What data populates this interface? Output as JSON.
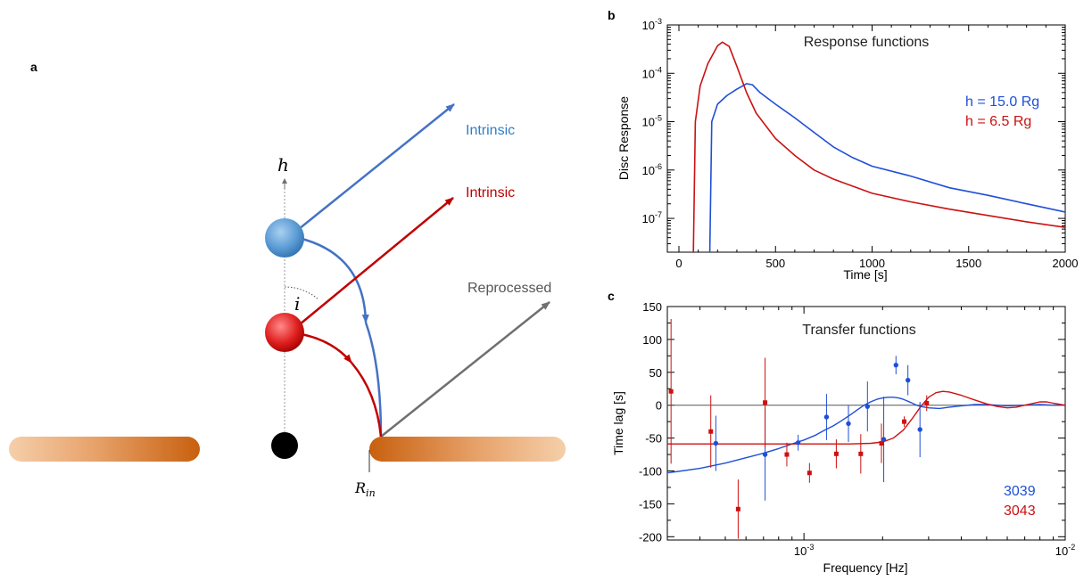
{
  "panel_a": {
    "label": "a",
    "h_label": "h",
    "angle_label": "i",
    "rin_label": "R",
    "rin_sub": "in",
    "blue_ray_label": "Intrinsic",
    "red_ray_label": "Intrinsic",
    "reprocessed_label": "Reprocessed",
    "colors": {
      "blue": "#4472c4",
      "blue_text": "#2e7fc8",
      "red": "#c00000",
      "grey": "#707070",
      "disc": "#c8600f"
    }
  },
  "chart_data": [
    {
      "panel": "b",
      "type": "line",
      "title": "Response functions",
      "xlabel": "Time [s]",
      "ylabel": "Disc Response",
      "xlim": [
        -60,
        2000
      ],
      "ylim": [
        2e-08,
        0.001
      ],
      "yscale": "log",
      "xticks": [
        0,
        500,
        1000,
        1500,
        2000
      ],
      "xtick_labels": [
        "0",
        "500",
        "1000",
        "1500",
        "2000"
      ],
      "ytick_exponents": [
        -3,
        -4,
        -5,
        -6,
        -7
      ],
      "ytick_base": "10",
      "legend_position": "right",
      "series": [
        {
          "name": "h = 15.0 Rg",
          "color": "#1f4fd6",
          "points": [
            [
              160,
              2e-08
            ],
            [
              170,
              1e-05
            ],
            [
              200,
              2.3e-05
            ],
            [
              250,
              3.5e-05
            ],
            [
              300,
              4.7e-05
            ],
            [
              350,
              6.1e-05
            ],
            [
              380,
              5.8e-05
            ],
            [
              420,
              4e-05
            ],
            [
              500,
              2.3e-05
            ],
            [
              600,
              1.2e-05
            ],
            [
              700,
              6e-06
            ],
            [
              800,
              3e-06
            ],
            [
              900,
              1.8e-06
            ],
            [
              1000,
              1.2e-06
            ],
            [
              1200,
              7.5e-07
            ],
            [
              1400,
              4.3e-07
            ],
            [
              1600,
              3e-07
            ],
            [
              1800,
              2e-07
            ],
            [
              2000,
              1.35e-07
            ]
          ]
        },
        {
          "name": "h =   6.5 Rg",
          "color": "#cc1111",
          "points": [
            [
              75,
              2e-08
            ],
            [
              85,
              1e-05
            ],
            [
              110,
              5.5e-05
            ],
            [
              150,
              0.00016
            ],
            [
              200,
              0.00037
            ],
            [
              225,
              0.00044
            ],
            [
              260,
              0.00036
            ],
            [
              300,
              0.00014
            ],
            [
              350,
              4e-05
            ],
            [
              400,
              1.5e-05
            ],
            [
              500,
              4.5e-06
            ],
            [
              600,
              2e-06
            ],
            [
              700,
              1e-06
            ],
            [
              800,
              6.5e-07
            ],
            [
              1000,
              3.3e-07
            ],
            [
              1200,
              2.2e-07
            ],
            [
              1400,
              1.55e-07
            ],
            [
              1600,
              1.15e-07
            ],
            [
              1800,
              8.5e-08
            ],
            [
              2000,
              6.5e-08
            ]
          ]
        }
      ]
    },
    {
      "panel": "c",
      "type": "scatter",
      "title": "Transfer functions",
      "xlabel": "Frequency [Hz]",
      "ylabel": "Time lag [s]",
      "xlim": [
        0.0003,
        0.01
      ],
      "xscale": "log",
      "ylim": [
        -205,
        150
      ],
      "yticks": [
        150,
        100,
        50,
        0,
        -50,
        -100,
        -150,
        -200
      ],
      "ytick_labels": [
        "150",
        "100",
        "50",
        "0",
        "-50",
        "-100",
        "-150",
        "-200"
      ],
      "xtick_exponents": [
        -3,
        -2
      ],
      "xtick_base": "10",
      "legend_position": "bottom-right",
      "series": [
        {
          "name": "3039",
          "color": "#1f4fd6",
          "marker": "circle",
          "points": [
            {
              "x": 0.00046,
              "y": -58,
              "err": 42
            },
            {
              "x": 0.00071,
              "y": -75,
              "err": 70
            },
            {
              "x": 0.00095,
              "y": -57,
              "err": 12
            },
            {
              "x": 0.00122,
              "y": -18,
              "err": 35
            },
            {
              "x": 0.00148,
              "y": -28,
              "err": 28
            },
            {
              "x": 0.00175,
              "y": -2,
              "err": 38
            },
            {
              "x": 0.00202,
              "y": -52,
              "err": 65
            },
            {
              "x": 0.00225,
              "y": 61,
              "err": 14
            },
            {
              "x": 0.0025,
              "y": 38,
              "err": 23
            },
            {
              "x": 0.00278,
              "y": -37,
              "err": 42
            }
          ],
          "model_curve": [
            [
              0.0003,
              -103
            ],
            [
              0.0004,
              -96
            ],
            [
              0.0005,
              -88
            ],
            [
              0.0006,
              -80
            ],
            [
              0.0007,
              -73
            ],
            [
              0.0008,
              -66
            ],
            [
              0.0009,
              -59
            ],
            [
              0.001,
              -53
            ],
            [
              0.0011,
              -46
            ],
            [
              0.0012,
              -38
            ],
            [
              0.0013,
              -31
            ],
            [
              0.0014,
              -23
            ],
            [
              0.0015,
              -15
            ],
            [
              0.0016,
              -7
            ],
            [
              0.0017,
              0
            ],
            [
              0.0018,
              5
            ],
            [
              0.0019,
              9
            ],
            [
              0.002,
              11
            ],
            [
              0.0021,
              12
            ],
            [
              0.0022,
              12
            ],
            [
              0.0023,
              11
            ],
            [
              0.0024,
              9
            ],
            [
              0.0025,
              6
            ],
            [
              0.0026,
              3
            ],
            [
              0.0027,
              0
            ],
            [
              0.0028,
              -2
            ],
            [
              0.003,
              -4
            ],
            [
              0.0033,
              -5
            ],
            [
              0.0036,
              -3
            ],
            [
              0.004,
              -1
            ],
            [
              0.0045,
              1
            ],
            [
              0.005,
              1
            ],
            [
              0.006,
              -1
            ],
            [
              0.007,
              0
            ],
            [
              0.008,
              1
            ],
            [
              0.009,
              0
            ],
            [
              0.01,
              0
            ]
          ]
        },
        {
          "name": "3043",
          "color": "#cc1111",
          "marker": "square",
          "points": [
            {
              "x": 0.00031,
              "y": 21,
              "err": 110
            },
            {
              "x": 0.00044,
              "y": -40,
              "err": 55
            },
            {
              "x": 0.00056,
              "y": -158,
              "err": 45
            },
            {
              "x": 0.00071,
              "y": 4,
              "err": 68
            },
            {
              "x": 0.00086,
              "y": -75,
              "err": 18
            },
            {
              "x": 0.00105,
              "y": -103,
              "err": 15
            },
            {
              "x": 0.00133,
              "y": -74,
              "err": 22
            },
            {
              "x": 0.00165,
              "y": -74,
              "err": 30
            },
            {
              "x": 0.00198,
              "y": -58,
              "err": 30
            },
            {
              "x": 0.00242,
              "y": -25,
              "err": 8
            },
            {
              "x": 0.00295,
              "y": 3,
              "err": 12
            }
          ],
          "model_curve": [
            [
              0.0003,
              -59
            ],
            [
              0.0006,
              -59
            ],
            [
              0.001,
              -59
            ],
            [
              0.0015,
              -59
            ],
            [
              0.0018,
              -58
            ],
            [
              0.002,
              -56
            ],
            [
              0.0022,
              -50
            ],
            [
              0.0024,
              -38
            ],
            [
              0.0026,
              -20
            ],
            [
              0.0028,
              -2
            ],
            [
              0.003,
              12
            ],
            [
              0.0032,
              19
            ],
            [
              0.0034,
              21
            ],
            [
              0.0036,
              20
            ],
            [
              0.004,
              15
            ],
            [
              0.0045,
              8
            ],
            [
              0.005,
              2
            ],
            [
              0.0055,
              -2
            ],
            [
              0.006,
              -4
            ],
            [
              0.0065,
              -3
            ],
            [
              0.007,
              0
            ],
            [
              0.008,
              5
            ],
            [
              0.0085,
              5
            ],
            [
              0.009,
              3
            ],
            [
              0.01,
              0
            ]
          ]
        }
      ]
    }
  ]
}
